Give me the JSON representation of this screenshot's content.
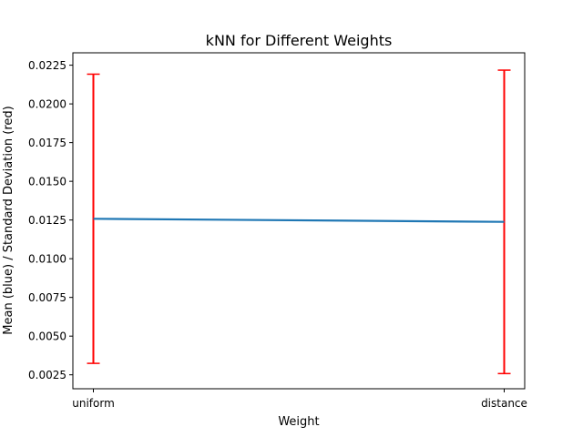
{
  "chart_data": {
    "type": "line",
    "title": "kNN for Different Weights",
    "xlabel": "Weight",
    "ylabel": "Mean (blue) / Standard Deviation (red)",
    "categories": [
      "uniform",
      "distance"
    ],
    "series": [
      {
        "values": [
          0.01258,
          0.01238
        ],
        "errors": [
          0.00934,
          0.0098
        ],
        "color": "#1f77b4",
        "error_color": "#ff0000"
      }
    ],
    "ylim": [
      0.0016,
      0.0233
    ],
    "yticks": [
      0.0025,
      0.005,
      0.0075,
      0.01,
      0.0125,
      0.015,
      0.0175,
      0.02,
      0.0225
    ],
    "yticklabels": [
      "0.0025",
      "0.0050",
      "0.0075",
      "0.0100",
      "0.0125",
      "0.0150",
      "0.0175",
      "0.0200",
      "0.0225"
    ],
    "grid": false
  }
}
